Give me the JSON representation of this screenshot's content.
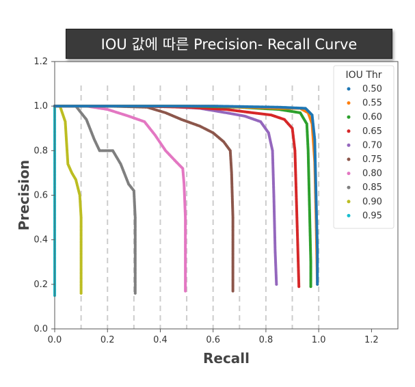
{
  "chart_data": {
    "type": "line",
    "title": "IOU 값에 따른 Precision- Recall Curve",
    "xlabel": "Recall",
    "ylabel": "Precision",
    "xlim": [
      0.0,
      1.3
    ],
    "ylim": [
      0.0,
      1.2
    ],
    "xticks": [
      "0.0",
      "0.2",
      "0.4",
      "0.6",
      "0.8",
      "1.0",
      "1.2"
    ],
    "yticks": [
      "0.0",
      "0.2",
      "0.4",
      "0.6",
      "0.8",
      "1.0",
      "1.2"
    ],
    "vertical_guides": [
      0.1,
      0.2,
      0.3,
      0.4,
      0.5,
      0.6,
      0.7,
      0.8,
      0.9,
      1.0
    ],
    "legend": {
      "title": "IOU Thr",
      "placement": "top-right"
    },
    "series": [
      {
        "name": "0.50",
        "color": "#1f77b4",
        "points": [
          [
            0.0,
            1.0
          ],
          [
            0.3,
            1.0
          ],
          [
            0.6,
            1.0
          ],
          [
            0.85,
            0.995
          ],
          [
            0.95,
            0.99
          ],
          [
            0.975,
            0.96
          ],
          [
            0.985,
            0.85
          ],
          [
            0.99,
            0.6
          ],
          [
            0.995,
            0.35
          ],
          [
            0.995,
            0.2
          ]
        ]
      },
      {
        "name": "0.55",
        "color": "#ff7f0e",
        "points": [
          [
            0.0,
            1.0
          ],
          [
            0.3,
            1.0
          ],
          [
            0.6,
            1.0
          ],
          [
            0.85,
            0.99
          ],
          [
            0.93,
            0.99
          ],
          [
            0.96,
            0.97
          ],
          [
            0.975,
            0.92
          ],
          [
            0.985,
            0.75
          ],
          [
            0.99,
            0.5
          ],
          [
            0.995,
            0.2
          ]
        ]
      },
      {
        "name": "0.60",
        "color": "#2ca02c",
        "points": [
          [
            0.0,
            1.0
          ],
          [
            0.3,
            1.0
          ],
          [
            0.5,
            1.0
          ],
          [
            0.7,
            0.995
          ],
          [
            0.85,
            0.985
          ],
          [
            0.93,
            0.97
          ],
          [
            0.955,
            0.92
          ],
          [
            0.96,
            0.8
          ],
          [
            0.965,
            0.55
          ],
          [
            0.97,
            0.3
          ],
          [
            0.97,
            0.19
          ]
        ]
      },
      {
        "name": "0.65",
        "color": "#d62728",
        "points": [
          [
            0.0,
            1.0
          ],
          [
            0.3,
            1.0
          ],
          [
            0.5,
            0.995
          ],
          [
            0.65,
            0.985
          ],
          [
            0.75,
            0.97
          ],
          [
            0.82,
            0.96
          ],
          [
            0.87,
            0.94
          ],
          [
            0.9,
            0.9
          ],
          [
            0.91,
            0.8
          ],
          [
            0.915,
            0.6
          ],
          [
            0.92,
            0.4
          ],
          [
            0.925,
            0.19
          ]
        ]
      },
      {
        "name": "0.70",
        "color": "#9467bd",
        "points": [
          [
            0.0,
            1.0
          ],
          [
            0.2,
            1.0
          ],
          [
            0.4,
            1.0
          ],
          [
            0.55,
            0.99
          ],
          [
            0.65,
            0.97
          ],
          [
            0.72,
            0.955
          ],
          [
            0.78,
            0.93
          ],
          [
            0.81,
            0.88
          ],
          [
            0.825,
            0.8
          ],
          [
            0.83,
            0.6
          ],
          [
            0.835,
            0.35
          ],
          [
            0.84,
            0.2
          ]
        ]
      },
      {
        "name": "0.75",
        "color": "#8c564b",
        "points": [
          [
            0.0,
            1.0
          ],
          [
            0.2,
            1.0
          ],
          [
            0.35,
            0.995
          ],
          [
            0.42,
            0.97
          ],
          [
            0.48,
            0.94
          ],
          [
            0.55,
            0.91
          ],
          [
            0.6,
            0.88
          ],
          [
            0.64,
            0.84
          ],
          [
            0.665,
            0.8
          ],
          [
            0.67,
            0.7
          ],
          [
            0.675,
            0.5
          ],
          [
            0.675,
            0.3
          ],
          [
            0.675,
            0.17
          ]
        ]
      },
      {
        "name": "0.80",
        "color": "#e377c2",
        "points": [
          [
            0.0,
            1.0
          ],
          [
            0.12,
            1.0
          ],
          [
            0.2,
            0.985
          ],
          [
            0.28,
            0.955
          ],
          [
            0.34,
            0.93
          ],
          [
            0.38,
            0.87
          ],
          [
            0.42,
            0.8
          ],
          [
            0.46,
            0.75
          ],
          [
            0.485,
            0.72
          ],
          [
            0.49,
            0.65
          ],
          [
            0.495,
            0.5
          ],
          [
            0.495,
            0.3
          ],
          [
            0.495,
            0.17
          ]
        ]
      },
      {
        "name": "0.85",
        "color": "#7f7f7f",
        "points": [
          [
            0.0,
            1.0
          ],
          [
            0.08,
            1.0
          ],
          [
            0.12,
            0.94
          ],
          [
            0.15,
            0.85
          ],
          [
            0.17,
            0.8
          ],
          [
            0.22,
            0.8
          ],
          [
            0.25,
            0.74
          ],
          [
            0.28,
            0.65
          ],
          [
            0.3,
            0.62
          ],
          [
            0.305,
            0.5
          ],
          [
            0.305,
            0.3
          ],
          [
            0.305,
            0.16
          ]
        ]
      },
      {
        "name": "0.90",
        "color": "#bcbd22",
        "points": [
          [
            0.0,
            1.0
          ],
          [
            0.02,
            1.0
          ],
          [
            0.04,
            0.93
          ],
          [
            0.05,
            0.74
          ],
          [
            0.065,
            0.7
          ],
          [
            0.08,
            0.67
          ],
          [
            0.095,
            0.6
          ],
          [
            0.1,
            0.5
          ],
          [
            0.1,
            0.3
          ],
          [
            0.1,
            0.16
          ]
        ]
      },
      {
        "name": "0.95",
        "color": "#17becf",
        "points": [
          [
            0.0,
            1.0
          ],
          [
            0.0,
            0.66
          ],
          [
            0.0,
            0.5
          ],
          [
            0.0,
            0.3
          ],
          [
            0.0,
            0.15
          ]
        ]
      }
    ]
  }
}
